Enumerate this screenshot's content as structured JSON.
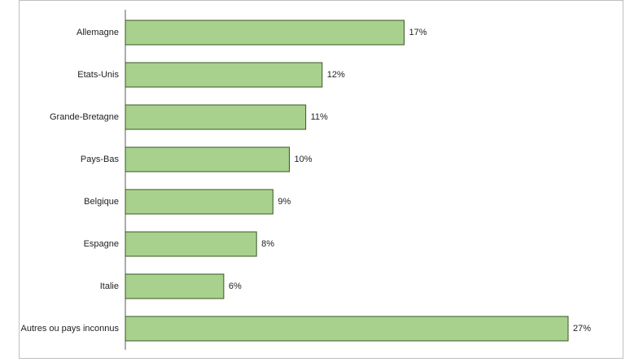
{
  "chart_data": {
    "type": "hbar",
    "categories": [
      "Allemagne",
      "Etats-Unis",
      "Grande-Bretagne",
      "Pays-Bas",
      "Belgique",
      "Espagne",
      "Italie",
      "Autres ou pays inconnus"
    ],
    "values": [
      17,
      12,
      11,
      10,
      9,
      8,
      6,
      27
    ],
    "value_labels": [
      "17%",
      "12%",
      "11%",
      "10%",
      "9%",
      "8%",
      "6%",
      "27%"
    ],
    "color": "#a9d18e"
  }
}
